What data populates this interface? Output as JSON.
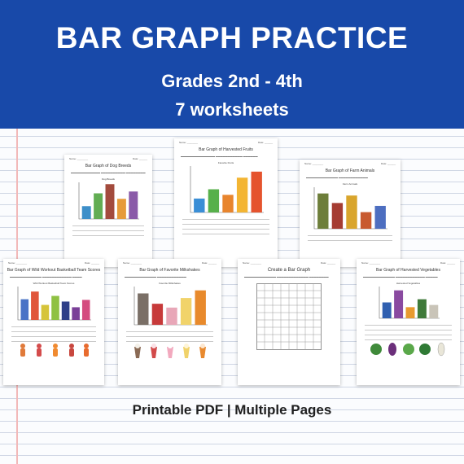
{
  "banner": {
    "title": "BAR GRAPH PRACTICE",
    "grades": "Grades 2nd - 4th",
    "count": "7 worksheets",
    "color": "#1849a9"
  },
  "worksheets": [
    {
      "title": "Bar Graph of Dog Breeds",
      "graph_title": "Dog Breeds",
      "bar_colors": [
        "#3d8fc9",
        "#62ad53",
        "#a34b3d",
        "#e69b3a",
        "#8a5aa8"
      ],
      "bar_levels": [
        0.35,
        0.7,
        0.95,
        0.55,
        0.75
      ]
    },
    {
      "title": "Bar Graph of Harvested Fruits",
      "graph_title": "Favorite Fruits",
      "bar_colors": [
        "#3a8ed6",
        "#57b04b",
        "#e8852e",
        "#f3b533",
        "#e5532e"
      ],
      "bar_levels": [
        0.3,
        0.5,
        0.38,
        0.75,
        0.88
      ]
    },
    {
      "title": "Bar Graph of Farm Animals",
      "graph_title": "Farm Animals",
      "bar_colors": [
        "#6d7e3a",
        "#a53c32",
        "#d9a52c",
        "#c85a30",
        "#4d6ec0"
      ],
      "bar_levels": [
        0.85,
        0.62,
        0.8,
        0.4,
        0.55
      ]
    },
    {
      "title": "Bar Graph of Wild Workout Basketball Team Scores",
      "graph_title": "Wild Workout Basketball Team Scores",
      "bar_colors": [
        "#4a73c6",
        "#e0563b",
        "#d6c43a",
        "#8fc143",
        "#2f3f88",
        "#7a3f98",
        "#d44c7f"
      ],
      "bar_levels": [
        0.62,
        0.85,
        0.45,
        0.72,
        0.55,
        0.38,
        0.6
      ]
    },
    {
      "title": "Bar Graph of Favorite Milkshakes",
      "graph_title": "Favorite Milkshakes",
      "bar_colors": [
        "#7a6f66",
        "#c73a3a",
        "#e8a7b8",
        "#f1d36a",
        "#e88a2c"
      ],
      "bar_levels": [
        0.82,
        0.55,
        0.45,
        0.7,
        0.9
      ]
    },
    {
      "title": "Create a Bar Graph",
      "graph_title": "",
      "bar_colors": [],
      "bar_levels": []
    },
    {
      "title": "Bar Graph of Harvested Vegetables",
      "graph_title": "Harvested Vegetables",
      "bar_colors": [
        "#2f5fb0",
        "#8a4aa0",
        "#e89a2f",
        "#3f7a3a",
        "#c9c4b8"
      ],
      "bar_levels": [
        0.5,
        0.88,
        0.35,
        0.6,
        0.42
      ]
    }
  ],
  "footer": "Printable PDF  |  Multiple Pages"
}
